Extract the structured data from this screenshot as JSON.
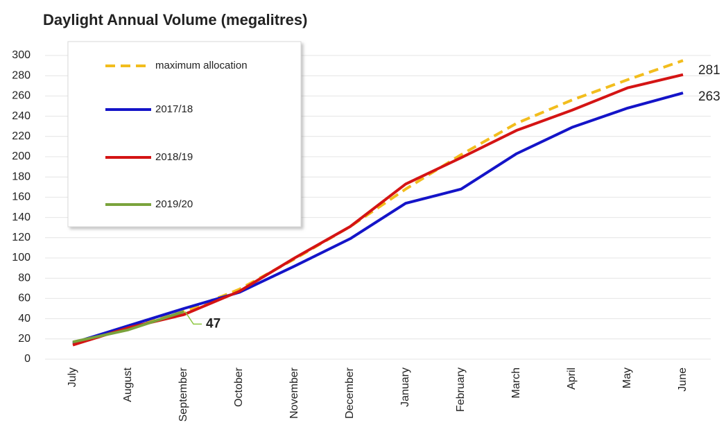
{
  "chart_data": {
    "type": "line",
    "title": "Daylight Annual Volume (megalitres)",
    "categories": [
      "July",
      "August",
      "September",
      "October",
      "November",
      "December",
      "January",
      "February",
      "March",
      "April",
      "May",
      "June"
    ],
    "series": [
      {
        "name": "maximum allocation",
        "color": "#f2bd1d",
        "dashed": true,
        "values": [
          15,
          31,
          47,
          69,
          99,
          131,
          168,
          202,
          233,
          256,
          276,
          295
        ]
      },
      {
        "name": "2017/18",
        "color": "#1414c8",
        "values": [
          16,
          33,
          50,
          66,
          92,
          119,
          154,
          168,
          203,
          229,
          248,
          263
        ]
      },
      {
        "name": "2018/19",
        "color": "#d41414",
        "values": [
          14,
          31,
          44,
          67,
          100,
          131,
          173,
          199,
          226,
          246,
          268,
          281
        ]
      },
      {
        "name": "2019/20",
        "color": "#7aa33c",
        "values": [
          17,
          29,
          47,
          null,
          null,
          null,
          null,
          null,
          null,
          null,
          null,
          null
        ]
      }
    ],
    "ylim": [
      0,
      300
    ],
    "yticks": [
      0,
      20,
      40,
      60,
      80,
      100,
      120,
      140,
      160,
      180,
      200,
      220,
      240,
      260,
      280,
      300
    ],
    "grid": true,
    "legend": "upper left"
  }
}
